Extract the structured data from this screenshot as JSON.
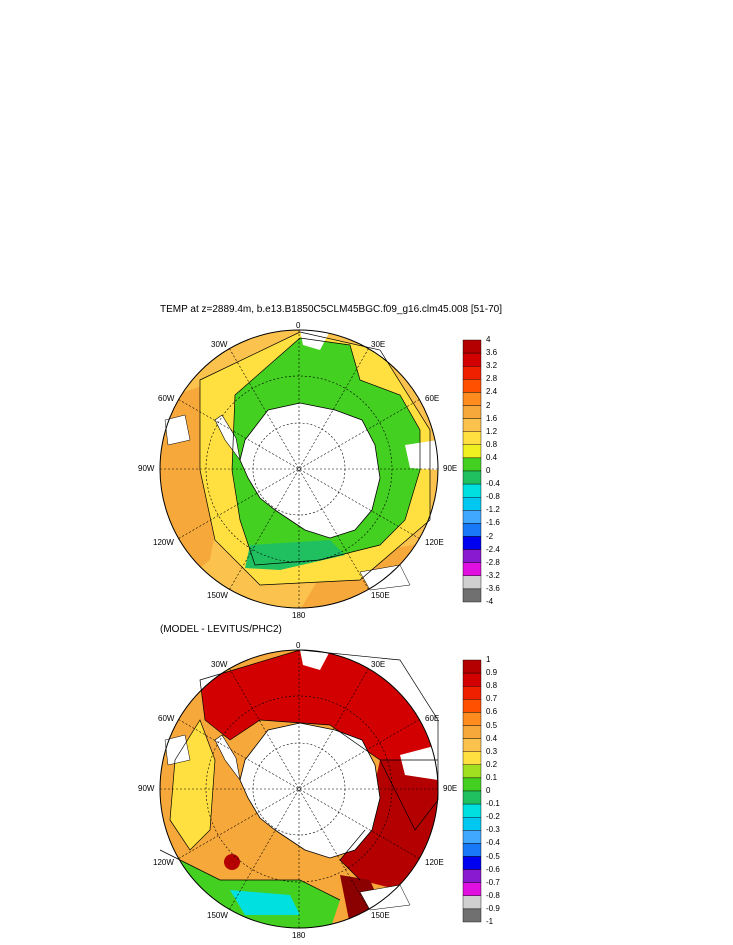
{
  "panels": [
    {
      "title": "TEMP at z=2889.4m, b.e13.B1850C5CLM45BGC.f09_g16.clm45.008 [51-70]",
      "lon_labels": [
        "0",
        "30E",
        "60E",
        "90E",
        "120E",
        "150E",
        "180",
        "150W",
        "120W",
        "90W",
        "60W",
        "30W"
      ],
      "colorbar": {
        "labels": [
          "4",
          "3.6",
          "3.2",
          "2.8",
          "2.4",
          "2",
          "1.6",
          "1.2",
          "0.8",
          "0.4",
          "0",
          "-0.4",
          "-0.8",
          "-1.2",
          "-1.6",
          "-2",
          "-2.4",
          "-2.8",
          "-3.2",
          "-3.6",
          "-4"
        ],
        "colors": [
          "#b40000",
          "#d20000",
          "#ee2000",
          "#ff5000",
          "#ff8c1e",
          "#f7a83a",
          "#fbc24e",
          "#ffe040",
          "#f0f020",
          "#44d020",
          "#20c060",
          "#00e0e0",
          "#00c8f0",
          "#40a8ff",
          "#1878f8",
          "#0000f0",
          "#8a1ad0",
          "#e010e0",
          "#d0d0d0",
          "#707070"
        ]
      }
    },
    {
      "title": "(MODEL - LEVITUS/PHC2)",
      "lon_labels": [
        "0",
        "30E",
        "60E",
        "90E",
        "120E",
        "150E",
        "180",
        "150W",
        "120W",
        "90W",
        "60W",
        "30W"
      ],
      "colorbar": {
        "labels": [
          "1",
          "0.9",
          "0.8",
          "0.7",
          "0.6",
          "0.5",
          "0.4",
          "0.3",
          "0.2",
          "0.1",
          "0",
          "-0.1",
          "-0.2",
          "-0.3",
          "-0.4",
          "-0.5",
          "-0.6",
          "-0.7",
          "-0.8",
          "-0.9",
          "-1"
        ],
        "colors": [
          "#b40000",
          "#d20000",
          "#ee2000",
          "#ff5000",
          "#ff8c1e",
          "#f7a83a",
          "#fbc24e",
          "#ffe040",
          "#a0e020",
          "#44d020",
          "#20c060",
          "#00e0e0",
          "#00c8f0",
          "#40a8ff",
          "#1878f8",
          "#0000f0",
          "#8a1ad0",
          "#e010e0",
          "#d0d0d0",
          "#707070"
        ]
      }
    }
  ]
}
